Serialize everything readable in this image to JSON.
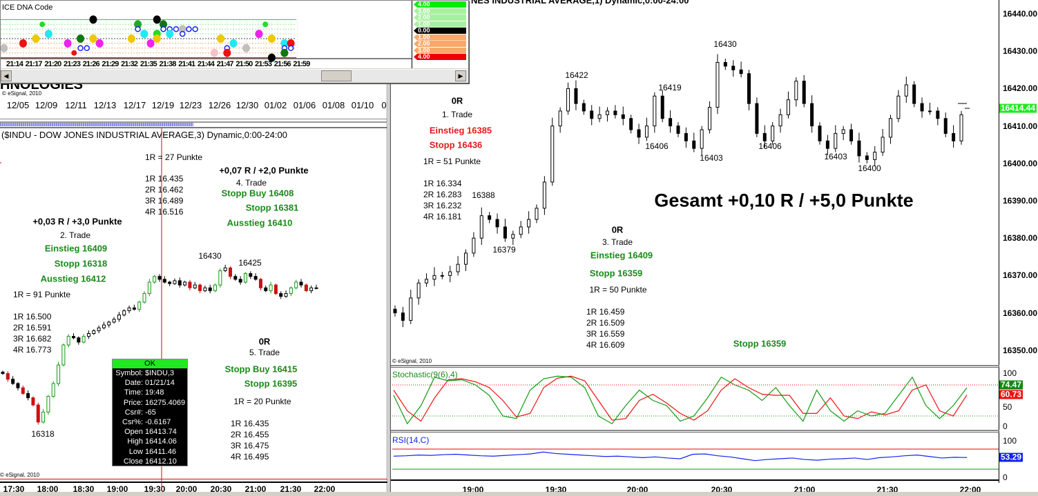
{
  "left_chart": {
    "top_title_fragment": "HNOLOGIES",
    "copyright": "© eSignal, 2010",
    "date_ticks": [
      "12/05",
      "12/09",
      "12/11",
      "12/13",
      "12/17",
      "12/19",
      "12/23",
      "12/26",
      "12/30",
      "01/02",
      "01/06",
      "01/08",
      "01/10",
      "0"
    ],
    "title": "($INDU - DOW JONES INDUSTRIAL AVERAGE,3) Dynamic,0:00-24:00",
    "time_ticks": [
      "17:30",
      "18:00",
      "18:30",
      "19:00",
      "19:30",
      "20:00",
      "20:30",
      "21:00",
      "21:30",
      "22:00"
    ],
    "annotations": {
      "t4_r": "1R = 27 Punkte",
      "t4_l1": "1R 16.435",
      "t4_l2": "2R 16.462",
      "t4_l3": "3R 16.489",
      "t4_l4": "4R 16.516",
      "t4_result": "+0,07 R / +2,0 Punkte",
      "t4_name": "4. Trade",
      "t4_entry": "Stopp Buy 16408",
      "t4_stop": "Stopp 16381",
      "t4_exit": "Ausstieg 16410",
      "t2_result": "+0,03 R / +3,0 Punkte",
      "t2_name": "2. Trade",
      "t2_entry": "Einstieg 16409",
      "t2_stop": "Stopp 16318",
      "t2_exit": "Ausstieg 16412",
      "t2_r": "1R = 91 Punkte",
      "t2_l1": "1R 16.500",
      "t2_l2": "2R 16.591",
      "t2_l3": "3R 16.682",
      "t2_l4": "4R 16.773",
      "p16430": "16430",
      "p16425": "16425",
      "p16318": "16318",
      "t5_result": "0R",
      "t5_name": "5. Trade",
      "t5_entry": "Stopp Buy 16415",
      "t5_stop": "Stopp 16395",
      "t5_r": "1R = 20 Punkte",
      "t5_l1": "1R 16.435",
      "t5_l2": "2R 16.455",
      "t5_l3": "3R 16.475",
      "t5_l4": "4R 16.495"
    },
    "tooltip": {
      "status": "OK",
      "rows": [
        {
          "k": "Symbol:",
          "v": "$INDU,3"
        },
        {
          "k": "Date:",
          "v": "01/21/14"
        },
        {
          "k": "Time:",
          "v": "19:48"
        },
        {
          "k": "Price:",
          "v": "16275.4069"
        },
        {
          "k": "Csr#:",
          "v": "-65"
        },
        {
          "k": "Csr%:",
          "v": "-0.6167"
        },
        {
          "k": "Open",
          "v": "16413.74"
        },
        {
          "k": "High",
          "v": "16414.06"
        },
        {
          "k": "Low",
          "v": "16411.46"
        },
        {
          "k": "Close",
          "v": "16412.10"
        }
      ]
    }
  },
  "dna_window": {
    "title": "ICE DNA Code",
    "time_ticks": [
      "21:14",
      "21:17",
      "21:20",
      "21:23",
      "21:26",
      "21:29",
      "21:32",
      "21:35",
      "21:38",
      "21:41",
      "21:44",
      "21:47",
      "21:50",
      "21:53",
      "21:56",
      "21:59"
    ],
    "legend": [
      {
        "v": "4.00",
        "c": "#00ee00"
      },
      {
        "v": "3.00",
        "c": "#a8f0a0"
      },
      {
        "v": "2.00",
        "c": "#a8f0a0"
      },
      {
        "v": "1.00",
        "c": "#a8f0a0"
      },
      {
        "v": "0.00",
        "c": "#000000"
      },
      {
        "v": "1.00",
        "c": "#f8a868"
      },
      {
        "v": "2.00",
        "c": "#f8a868"
      },
      {
        "v": "3.00",
        "c": "#f8a868"
      },
      {
        "v": "4.00",
        "c": "#ee0000"
      }
    ],
    "dots": [
      {
        "t": 13,
        "lv": -2,
        "c": "#c0c0c0"
      },
      {
        "t": 16,
        "lv": -1,
        "c": "#ee1111"
      },
      {
        "t": 18,
        "lv": 0,
        "c": "#f0c800"
      },
      {
        "t": 19,
        "lv": 3,
        "c": "#22dd22"
      },
      {
        "t": 20,
        "lv": 1,
        "c": "#22e8f0"
      },
      {
        "t": 23,
        "lv": -1,
        "c": "#ee22ee"
      },
      {
        "t": 24,
        "lv": -3,
        "c": "#ee1111"
      },
      {
        "t": 25,
        "lv": 0,
        "c": "#117711"
      },
      {
        "t": 25,
        "lv": -2,
        "c": "#1122ee"
      },
      {
        "t": 26,
        "lv": -2,
        "c": "#1122ee"
      },
      {
        "t": 27,
        "lv": 4,
        "c": "#000000"
      },
      {
        "t": 27,
        "lv": 0,
        "c": "#f0c800"
      },
      {
        "t": 28,
        "lv": -1,
        "c": "#ee22ee"
      },
      {
        "t": 33,
        "lv": 0,
        "c": "#f0c800"
      },
      {
        "t": 34,
        "lv": 3,
        "c": "#22aa22"
      },
      {
        "t": 34,
        "lv": 2,
        "c": "#1122ee"
      },
      {
        "t": 35,
        "lv": 1,
        "c": "#22e8f0"
      },
      {
        "t": 36,
        "lv": -1,
        "c": "#ee22ee"
      },
      {
        "t": 37,
        "lv": 4,
        "c": "#000000"
      },
      {
        "t": 37,
        "lv": 1,
        "c": "#22dd22"
      },
      {
        "t": 37,
        "lv": 0,
        "c": "#f0c800"
      },
      {
        "t": 38,
        "lv": 3,
        "c": "#117711"
      },
      {
        "t": 38,
        "lv": 2,
        "c": "#1122ee"
      },
      {
        "t": 39,
        "lv": 2,
        "c": "#1122ee"
      },
      {
        "t": 39,
        "lv": 1,
        "c": "#22e8f0"
      },
      {
        "t": 40,
        "lv": 2,
        "c": "#1122ee"
      },
      {
        "t": 41,
        "lv": 2,
        "c": "#c0c0c0"
      },
      {
        "t": 41,
        "lv": 1,
        "c": "#1122ee"
      },
      {
        "t": 42,
        "lv": 2,
        "c": "#1122ee"
      },
      {
        "t": 43,
        "lv": 2,
        "c": "#1122ee"
      },
      {
        "t": 46,
        "lv": -3,
        "c": "#f8c0c8"
      },
      {
        "t": 47,
        "lv": 0,
        "c": "#f0c800"
      },
      {
        "t": 48,
        "lv": -2,
        "c": "#1122ee"
      },
      {
        "t": 48,
        "lv": -3,
        "c": "#ee1111"
      },
      {
        "t": 49,
        "lv": -1,
        "c": "#22e8f0"
      },
      {
        "t": 51,
        "lv": -2,
        "c": "#c0c0c0"
      },
      {
        "t": 53,
        "lv": 1,
        "c": "#ee22ee"
      },
      {
        "t": 54,
        "lv": 3,
        "c": "#22dd22"
      },
      {
        "t": 55,
        "lv": 0,
        "c": "#f0c800"
      },
      {
        "t": 55,
        "lv": -4,
        "c": "#000000"
      },
      {
        "t": 57,
        "lv": -1,
        "c": "#22e8f0"
      },
      {
        "t": 57,
        "lv": -2,
        "c": "#1122ee"
      },
      {
        "t": 57,
        "lv": -3,
        "c": "#117711"
      },
      {
        "t": 58,
        "lv": -1,
        "c": "#ee1111"
      },
      {
        "t": 58,
        "lv": -2,
        "c": "#1122ee"
      }
    ]
  },
  "right_chart": {
    "title": "NES INDUSTRIAL AVERAGE,1) Dynamic,0:00-24:00",
    "copyright": "© eSignal, 2010",
    "price_ticks": [
      "16440.00",
      "16430.00",
      "16420.00",
      "16410.00",
      "16400.00",
      "16390.00",
      "16380.00",
      "16370.00",
      "16360.00",
      "16350.00"
    ],
    "last_price": "16414.44",
    "time_ticks": [
      "19:00",
      "19:30",
      "20:00",
      "20:30",
      "21:00",
      "21:30",
      "22:00"
    ],
    "annotations": {
      "t1_result": "0R",
      "t1_name": "1. Trade",
      "t1_entry": "Einstieg 16385",
      "t1_stop": "Stopp 16436",
      "t1_r": "1R = 51 Punkte",
      "t1_l1": "1R 16.334",
      "t1_l2": "2R 16.283",
      "t1_l3": "3R 16.232",
      "t1_l4": "4R 16.181",
      "p16388": "16388",
      "p16379": "16379",
      "p16422": "16422",
      "p16430": "16430",
      "p16419": "16419",
      "p16406a": "16406",
      "p16403a": "16403",
      "p16406b": "16406",
      "p16403b": "16403",
      "p16400": "16400",
      "total": "Gesamt +0,10 R / +5,0 Punkte",
      "t3_result": "0R",
      "t3_name": "3. Trade",
      "t3_entry": "Einstieg 16409",
      "t3_stop": "Stopp 16359",
      "t3_r": "1R = 50 Punkte",
      "t3_l1": "1R 16.459",
      "t3_l2": "2R 16.509",
      "t3_l3": "3R 16.559",
      "t3_l4": "4R 16.609",
      "stop_extra": "Stopp 16359"
    },
    "stochastic": {
      "label": "Stochastic(9(6),4)",
      "k_value": "74.47",
      "d_value": "60.73",
      "ticks": [
        "100",
        "50",
        "0"
      ]
    },
    "rsi": {
      "label": "RSI(14,C)",
      "value": "53.29",
      "ticks": [
        "100",
        "0"
      ]
    }
  },
  "chart_data": [
    {
      "type": "candlestick",
      "name": "$INDU,3 (approx. closes)",
      "ylim": [
        16300,
        16440
      ],
      "closes": [
        16352,
        16348,
        16345,
        16342,
        16338,
        16335,
        16330,
        16318,
        16325,
        16336,
        16345,
        16358,
        16372,
        16378,
        16377,
        16374,
        16378,
        16380,
        16382,
        16384,
        16386,
        16388,
        16390,
        16393,
        16396,
        16398,
        16397,
        16402,
        16408,
        16416,
        16420,
        16418,
        16416,
        16415,
        16417,
        16414,
        16416,
        16412,
        16414,
        16410,
        16412,
        16410,
        16414,
        16424,
        16426,
        16420,
        16418,
        16416,
        16422,
        16420,
        16418,
        16412,
        16410,
        16414,
        16408,
        16406,
        16408,
        16412,
        16416,
        16414,
        16410,
        16412,
        16412
      ]
    },
    {
      "type": "candlestick",
      "name": "$INDU,1 (approx. closes)",
      "ylim": [
        16345,
        16445
      ],
      "closes": [
        16360,
        16358,
        16364,
        16368,
        16369,
        16370,
        16370,
        16371,
        16373,
        16376,
        16380,
        16386,
        16385,
        16383,
        16380,
        16381,
        16383,
        16385,
        16388,
        16395,
        16410,
        16414,
        16420,
        16416,
        16414,
        16412,
        16413,
        16414,
        16413,
        16412,
        16409,
        16407,
        16410,
        16418,
        16412,
        16410,
        16408,
        16406,
        16404,
        16409,
        16415,
        16427,
        16426,
        16425,
        16424,
        16416,
        16408,
        16406,
        16410,
        16413,
        16417,
        16422,
        16416,
        16410,
        16406,
        16404,
        16408,
        16409,
        16406,
        16402,
        16401,
        16403,
        16407,
        16412,
        16418,
        16421,
        16416,
        16414,
        16414,
        16412,
        16408,
        16406,
        16413
      ]
    },
    {
      "type": "line",
      "name": "Stochastic",
      "ylim": [
        0,
        100
      ],
      "k": [
        60,
        5,
        40,
        95,
        88,
        90,
        80,
        60,
        20,
        15,
        70,
        92,
        97,
        95,
        75,
        20,
        5,
        40,
        70,
        50,
        40,
        10,
        20,
        55,
        95,
        80,
        70,
        50,
        75,
        40,
        10,
        70,
        30,
        10,
        30,
        20,
        25,
        60,
        95,
        40,
        15,
        40,
        74.47
      ],
      "d": [
        70,
        30,
        10,
        55,
        90,
        92,
        86,
        75,
        50,
        18,
        25,
        75,
        93,
        97,
        88,
        50,
        12,
        15,
        50,
        62,
        45,
        25,
        12,
        30,
        70,
        92,
        75,
        62,
        60,
        60,
        25,
        25,
        55,
        20,
        15,
        28,
        22,
        30,
        70,
        80,
        30,
        20,
        60.73
      ]
    },
    {
      "type": "line",
      "name": "RSI(14,C)",
      "ylim": [
        0,
        100
      ],
      "values": [
        57,
        58,
        60,
        59,
        61,
        62,
        60,
        58,
        57,
        59,
        61,
        63,
        68,
        64,
        62,
        60,
        58,
        56,
        57,
        55,
        53,
        55,
        52,
        50,
        62,
        63,
        58,
        55,
        50,
        45,
        48,
        50,
        52,
        48,
        46,
        49,
        50,
        52,
        48,
        53,
        55,
        58,
        60,
        56,
        52,
        54,
        53.29
      ]
    }
  ]
}
